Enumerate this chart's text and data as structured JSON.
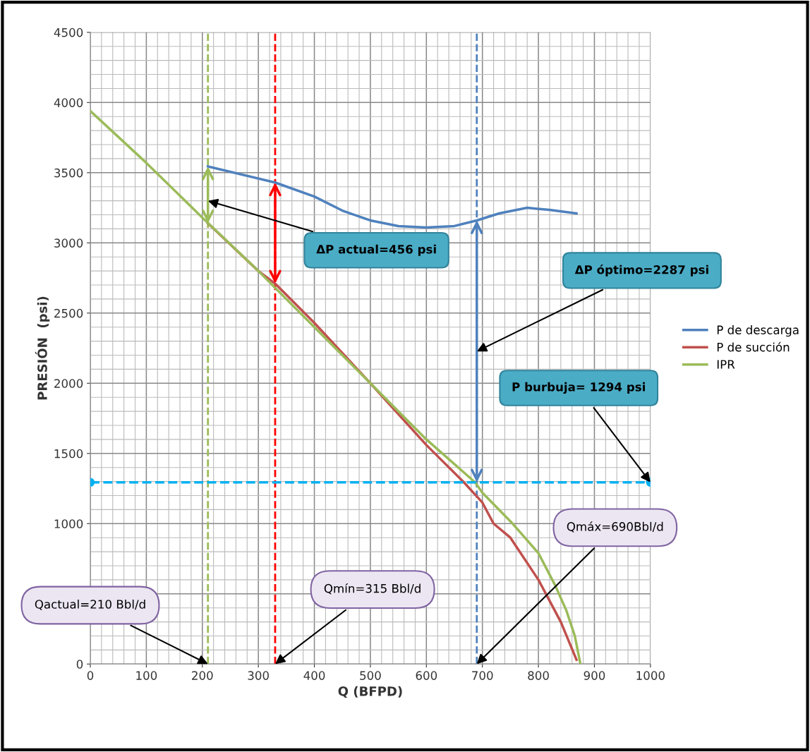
{
  "chart_data": {
    "type": "line",
    "xlabel": "Q (BFPD)",
    "ylabel": "PRESIÓN  (psi)",
    "xlim": [
      0,
      1000
    ],
    "ylim": [
      0,
      4500
    ],
    "xticks": [
      0,
      100,
      200,
      300,
      400,
      500,
      600,
      700,
      800,
      900,
      1000
    ],
    "yticks": [
      0,
      {
        "value": 500,
        "label": null
      },
      1000,
      1500,
      2000,
      2500,
      3000,
      3500,
      4000,
      4500
    ],
    "grid": true,
    "legend": "right",
    "marker": "none",
    "line_style": "solid",
    "series": [
      {
        "name": "P de descarga",
        "color": "#4f81bd",
        "x": [
          210,
          330,
          400,
          450,
          500,
          550,
          600,
          650,
          690,
          730,
          780,
          820,
          868
        ],
        "values": [
          3545,
          3430,
          3330,
          3230,
          3160,
          3120,
          3110,
          3120,
          3160,
          3210,
          3250,
          3235,
          3210
        ]
      },
      {
        "name": "P de succión",
        "color": "#c0504d",
        "x": [
          210,
          300,
          330,
          400,
          500,
          600,
          667,
          700,
          720,
          750,
          800,
          840,
          868
        ],
        "values": [
          3140,
          2800,
          2710,
          2430,
          2000,
          1560,
          1294,
          1150,
          1000,
          900,
          600,
          300,
          30
        ]
      },
      {
        "name": "IPR",
        "color": "#9bbb59",
        "x": [
          0,
          100,
          200,
          300,
          400,
          500,
          600,
          687,
          700,
          754,
          800,
          830,
          850,
          865,
          875
        ],
        "values": [
          3940,
          3570,
          3180,
          2800,
          2400,
          2000,
          1600,
          1294,
          1220,
          1000,
          790,
          560,
          380,
          200,
          0
        ]
      },
      {
        "color": "#00b0f0",
        "x": [
          0,
          1000
        ],
        "values": [
          1294,
          1294
        ],
        "marker": "circle",
        "line_style": "dashed"
      }
    ],
    "ref_lines": [
      {
        "axis": "x",
        "value": 210,
        "color": "#9bbb59",
        "line_style": "dashed"
      },
      {
        "axis": "x",
        "value": 330,
        "color": "#ff0000",
        "line_style": "dashed"
      },
      {
        "axis": "x",
        "value": 690,
        "color": "#4f81bd",
        "line_style": "dashed"
      }
    ],
    "annotations": [
      {
        "text": "ΔP actual=456 psi",
        "x": 210,
        "y": 3300
      },
      {
        "text": "ΔP óptimo=2287 psi",
        "x": 690,
        "y": 2227
      },
      {
        "text": "P burbuja= 1294 psi",
        "x": 1000,
        "y": 1294
      },
      "Qmáx=690Bbl/d",
      "Qmín=315 Bbl/d",
      "Qactual=210 Bbl/d"
    ]
  }
}
